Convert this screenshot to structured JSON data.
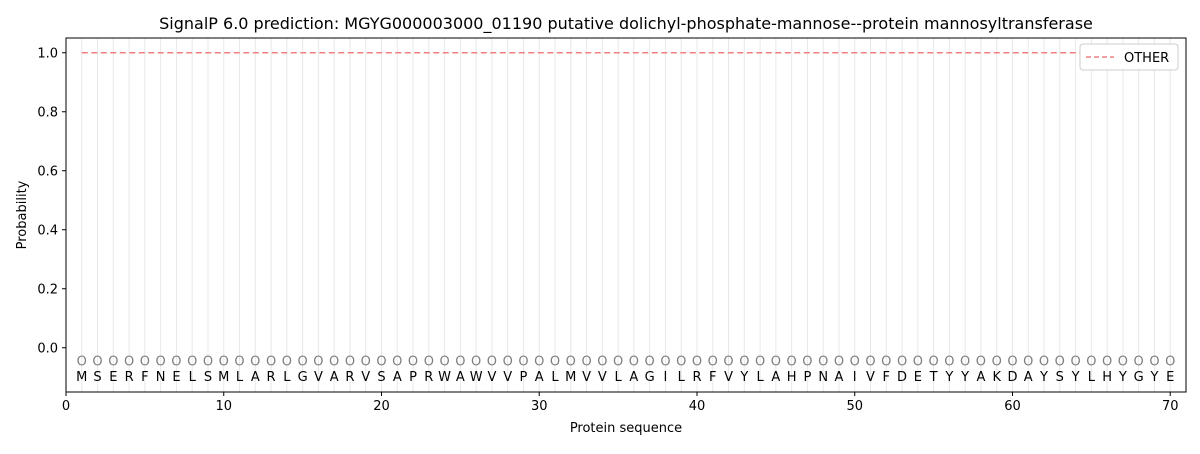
{
  "chart_data": {
    "type": "line",
    "title": "SignalP 6.0 prediction: MGYG000003000_01190 putative dolichyl-phosphate-mannose--protein mannosyltransferase",
    "xlabel": "Protein sequence",
    "ylabel": "Probability",
    "xlim": [
      0,
      71
    ],
    "ylim": [
      -0.15,
      1.05
    ],
    "xticks": [
      0,
      10,
      20,
      30,
      40,
      50,
      60,
      70
    ],
    "yticks": [
      0.0,
      0.2,
      0.4,
      0.6,
      0.8,
      1.0
    ],
    "ytick_labels": [
      "0.0",
      "0.2",
      "0.4",
      "0.6",
      "0.8",
      "1.0"
    ],
    "grid": "vertical lines at each residue",
    "legend_position": "top-right",
    "sequence": [
      "M",
      "S",
      "E",
      "R",
      "F",
      "N",
      "E",
      "L",
      "S",
      "M",
      "L",
      "A",
      "R",
      "L",
      "G",
      "V",
      "A",
      "R",
      "V",
      "S",
      "A",
      "P",
      "R",
      "W",
      "A",
      "W",
      "V",
      "V",
      "P",
      "A",
      "L",
      "M",
      "V",
      "V",
      "L",
      "A",
      "G",
      "I",
      "L",
      "R",
      "F",
      "V",
      "Y",
      "L",
      "A",
      "H",
      "P",
      "N",
      "A",
      "I",
      "V",
      "F",
      "D",
      "E",
      "T",
      "Y",
      "Y",
      "A",
      "K",
      "D",
      "A",
      "Y",
      "S",
      "Y",
      "L",
      "H",
      "Y",
      "G",
      "Y",
      "E"
    ],
    "region_label": "O",
    "region_label_y": -0.045,
    "series": [
      {
        "name": "OTHER",
        "color": "#f08080",
        "style": "dashed",
        "x_start": 1,
        "x_end": 70,
        "value": 1.0
      }
    ]
  }
}
